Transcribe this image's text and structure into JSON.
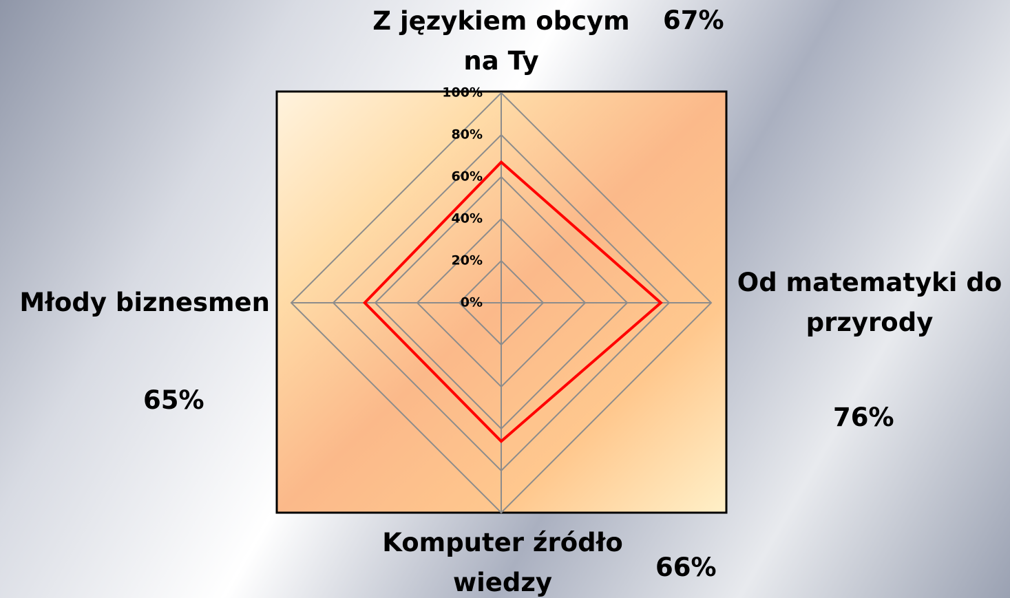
{
  "chart_data": {
    "type": "radar",
    "categories": [
      "Z językiem obcym na Ty",
      "Od matematyki do przyrody",
      "Komputer źródło wiedzy",
      "Młody biznesmen"
    ],
    "values": [
      67,
      76,
      66,
      65
    ],
    "value_labels": [
      "67%",
      "76%",
      "66%",
      "65%"
    ],
    "color": "#ff0000",
    "ylim": [
      0,
      100
    ],
    "yticks": [
      {
        "value": 0,
        "label": "0%"
      },
      {
        "value": 20,
        "label": "20%"
      },
      {
        "value": 40,
        "label": "40%"
      },
      {
        "value": 60,
        "label": "60%"
      },
      {
        "value": 80,
        "label": "80%"
      },
      {
        "value": 100,
        "label": "100%"
      }
    ],
    "grid": true
  }
}
